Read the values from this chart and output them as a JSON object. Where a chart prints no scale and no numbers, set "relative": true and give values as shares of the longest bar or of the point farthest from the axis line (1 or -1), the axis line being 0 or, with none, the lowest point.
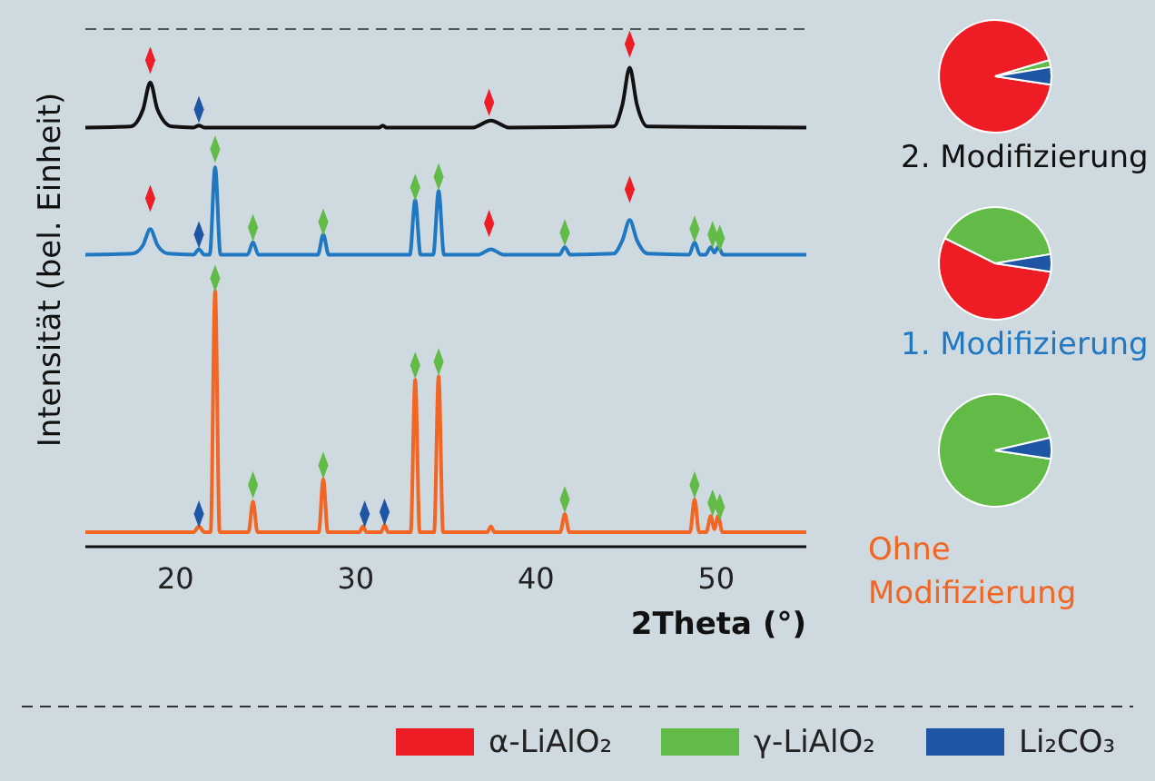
{
  "chart_data": [
    {
      "type": "line",
      "relative": true,
      "xlabel": "2Theta (°)",
      "ylabel": "Intensität (bel. Einheit)",
      "xlim": [
        15,
        55
      ],
      "xticks": [
        20,
        30,
        40,
        50
      ],
      "legend": "bottom",
      "series": [
        {
          "type": "line",
          "name": "2. Modifizierung",
          "color": "#111111",
          "x": [
            15,
            17.5,
            18.2,
            18.6,
            19.0,
            19.8,
            21.0,
            21.3,
            21.6,
            31.3,
            31.5,
            31.7,
            36.5,
            37.5,
            38.5,
            44.3,
            44.8,
            45.2,
            45.6,
            46.2,
            55
          ],
          "values": [
            0.834,
            0.836,
            0.87,
            0.924,
            0.87,
            0.836,
            0.834,
            0.838,
            0.834,
            0.834,
            0.838,
            0.834,
            0.834,
            0.848,
            0.834,
            0.836,
            0.88,
            0.953,
            0.88,
            0.836,
            0.834
          ]
        },
        {
          "type": "line",
          "name": "1. Modifizierung",
          "color": "#1f78c1",
          "x": [
            15,
            17.6,
            18.2,
            18.6,
            19.0,
            19.6,
            21.0,
            21.3,
            21.6,
            21.9,
            22.2,
            22.5,
            24.0,
            24.3,
            24.6,
            27.9,
            28.2,
            28.5,
            33.0,
            33.3,
            33.6,
            34.3,
            34.6,
            34.9,
            36.8,
            37.5,
            38.2,
            41.3,
            41.6,
            41.9,
            44.3,
            44.8,
            45.2,
            45.6,
            46.2,
            48.5,
            48.8,
            49.1,
            49.4,
            49.7,
            49.9,
            50.1,
            50.4,
            55
          ],
          "values": [
            0.581,
            0.583,
            0.6,
            0.632,
            0.6,
            0.583,
            0.581,
            0.592,
            0.581,
            0.581,
            0.755,
            0.581,
            0.581,
            0.606,
            0.581,
            0.581,
            0.621,
            0.581,
            0.581,
            0.69,
            0.581,
            0.581,
            0.708,
            0.581,
            0.581,
            0.592,
            0.581,
            0.581,
            0.596,
            0.581,
            0.583,
            0.61,
            0.65,
            0.61,
            0.583,
            0.581,
            0.606,
            0.581,
            0.581,
            0.596,
            0.585,
            0.596,
            0.581,
            0.581
          ]
        },
        {
          "type": "line",
          "name": "Ohne Modifizierung",
          "color": "#f26522",
          "x": [
            15,
            21.0,
            21.3,
            21.6,
            21.95,
            22.2,
            22.45,
            24.05,
            24.3,
            24.55,
            27.95,
            28.2,
            28.45,
            30.2,
            30.4,
            30.6,
            31.4,
            31.6,
            31.8,
            33.05,
            33.3,
            33.55,
            34.35,
            34.6,
            34.85,
            37.3,
            37.5,
            37.7,
            41.35,
            41.6,
            41.85,
            48.55,
            48.8,
            49.05,
            49.45,
            49.7,
            49.9,
            50.1,
            50.35,
            55
          ],
          "values": [
            0.029,
            0.029,
            0.04,
            0.029,
            0.029,
            0.509,
            0.029,
            0.029,
            0.09,
            0.029,
            0.029,
            0.134,
            0.029,
            0.029,
            0.04,
            0.029,
            0.029,
            0.043,
            0.029,
            0.029,
            0.332,
            0.029,
            0.029,
            0.339,
            0.029,
            0.029,
            0.04,
            0.029,
            0.029,
            0.065,
            0.029,
            0.029,
            0.094,
            0.029,
            0.029,
            0.061,
            0.035,
            0.061,
            0.029,
            0.029
          ]
        },
        {
          "type": "scatter",
          "name": "α-LiAlO₂",
          "color": "#ee1c25",
          "marker": "diamond",
          "x": [
            18.6,
            37.4,
            45.2,
            18.6,
            37.4,
            45.2
          ],
          "values": [
            0.968,
            0.884,
            1.0,
            0.693,
            0.643,
            0.711
          ]
        },
        {
          "type": "scatter",
          "name": "γ-LiAlO₂",
          "color": "#62bb46",
          "marker": "diamond",
          "x": [
            22.2,
            24.3,
            28.2,
            33.3,
            34.6,
            41.6,
            48.8,
            49.8,
            50.2,
            22.2,
            24.3,
            28.2,
            33.3,
            34.6,
            41.6,
            48.8,
            49.8,
            50.2
          ],
          "values": [
            0.791,
            0.635,
            0.646,
            0.715,
            0.736,
            0.625,
            0.632,
            0.621,
            0.614,
            0.534,
            0.123,
            0.162,
            0.361,
            0.368,
            0.094,
            0.123,
            0.087,
            0.079
          ]
        },
        {
          "type": "scatter",
          "name": "Li₂CO₃",
          "color": "#1f55a5",
          "marker": "diamond",
          "x": [
            21.3,
            21.3,
            21.3,
            30.5,
            31.6
          ],
          "values": [
            0.87,
            0.621,
            0.065,
            0.065,
            0.069
          ]
        }
      ]
    },
    {
      "type": "pie",
      "categories": [
        null,
        null,
        null
      ],
      "values": [
        93,
        2,
        5
      ],
      "colors": [
        "#ee1c25",
        "#62bb46",
        "#1f55a5"
      ]
    },
    {
      "type": "pie",
      "categories": [
        null,
        null,
        null
      ],
      "values": [
        55,
        40,
        5
      ],
      "colors": [
        "#ee1c25",
        "#62bb46",
        "#1f55a5"
      ]
    },
    {
      "type": "pie",
      "categories": [
        null,
        null
      ],
      "values": [
        94,
        6
      ],
      "colors": [
        "#62bb46",
        "#1f55a5"
      ]
    }
  ]
}
